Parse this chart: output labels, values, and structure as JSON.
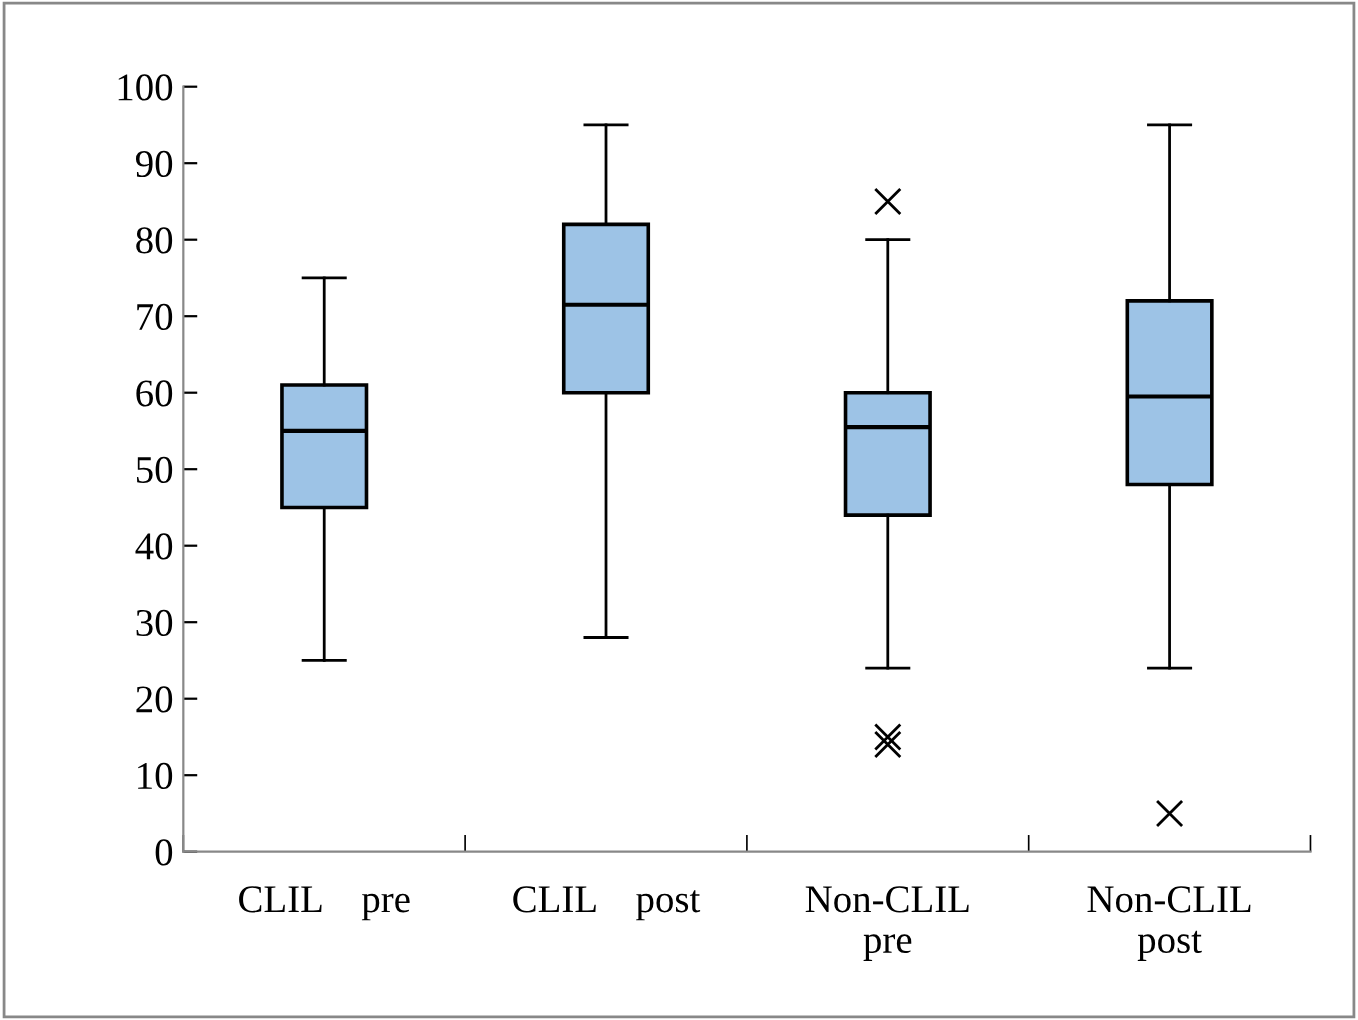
{
  "chart_data": {
    "type": "box",
    "categories": [
      "CLIL    pre",
      "CLIL    post",
      "Non-CLIL\npre",
      "Non-CLIL\npost"
    ],
    "boxes": [
      {
        "low": 25,
        "q1": 45,
        "median": 55,
        "q3": 61,
        "high": 75
      },
      {
        "low": 28,
        "q1": 60,
        "median": 71.5,
        "q3": 82,
        "high": 95
      },
      {
        "low": 24,
        "q1": 44,
        "median": 55.5,
        "q3": 60,
        "high": 80,
        "outliers": [
          85,
          15,
          14
        ]
      },
      {
        "low": 24,
        "q1": 48,
        "median": 59.5,
        "q3": 72,
        "high": 95,
        "outliers": [
          5
        ]
      }
    ],
    "color": "#9dc3e6",
    "marker": "cross",
    "ylim": [
      0,
      100
    ],
    "yticks": [
      0,
      10,
      20,
      30,
      40,
      50,
      60,
      70,
      80,
      90,
      100
    ],
    "grid": false
  }
}
